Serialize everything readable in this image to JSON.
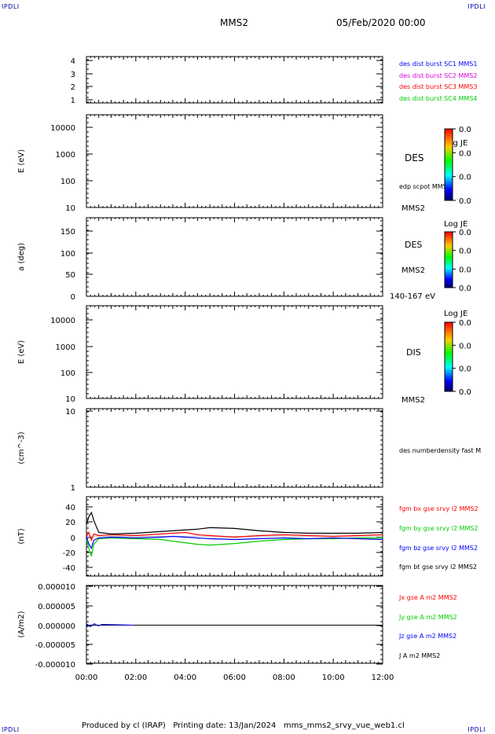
{
  "corners": {
    "tl": "IPDLI",
    "tr": "IPDLI",
    "bl": "IPDLI",
    "br": "IPDLI"
  },
  "header": {
    "spacecraft": "MMS2",
    "date": "05/Feb/2020 00:00"
  },
  "footer": "Produced by cl (IRAP)   Printing date: 13/Jan/2024   mms_mms2_srvy_vue_web1.cl",
  "colors": {
    "blue": "#0000ff",
    "magenta": "#dd00dd",
    "red": "#ff0000",
    "green": "#00cc00",
    "black": "#000000"
  },
  "chart_data": [
    {
      "type": "line",
      "ylim": [
        0.7,
        4.3
      ],
      "yticks": [
        "4",
        "3",
        "2",
        "1"
      ],
      "legend": [
        {
          "text": "des dist burst SC1 MMS1",
          "color": "#0000ff"
        },
        {
          "text": "des dist burst SC2 MMS2",
          "color": "#dd00dd"
        },
        {
          "text": "des dist burst SC3 MMS3",
          "color": "#ff0000"
        },
        {
          "text": "des dist burst SC4 MMS4",
          "color": "#00cc00"
        }
      ]
    },
    {
      "type": "heatmap",
      "ylabel": "E (eV)",
      "yscale": "log",
      "yticks": [
        "10000",
        "1000",
        "100",
        "10"
      ],
      "labels": [
        "DES",
        "edp scpot MMS2",
        "MMS2"
      ],
      "colorbar": {
        "title": "Log JE",
        "ticks": [
          "0.0",
          "0.0",
          "0.0",
          "0.0"
        ]
      }
    },
    {
      "type": "heatmap",
      "ylabel": "a (deg)",
      "ylim": [
        0,
        180
      ],
      "yticks": [
        "150",
        "100",
        "50",
        "0"
      ],
      "labels": [
        "DES",
        "MMS2",
        "140-167 eV"
      ],
      "colorbar": {
        "title": "Log JE",
        "ticks": [
          "0.0",
          "0.0",
          "0.0",
          "0.0"
        ]
      }
    },
    {
      "type": "heatmap",
      "ylabel": "E (eV)",
      "yscale": "log",
      "yticks": [
        "10000",
        "1000",
        "100",
        "10"
      ],
      "labels": [
        "DIS",
        "MMS2"
      ],
      "colorbar": {
        "title": "Log JE",
        "ticks": [
          "0.0",
          "0.0",
          "0.0",
          "0.0"
        ]
      }
    },
    {
      "type": "line",
      "ylabel": "(cm^-3)",
      "yscale": "log",
      "yticks": [
        "10",
        "1"
      ],
      "legend": [
        {
          "text": "des numberdensity fast M",
          "color": "#000000"
        }
      ]
    },
    {
      "type": "line",
      "ylabel": "(nT)",
      "ylim": [
        -50,
        50
      ],
      "yticks": [
        "40",
        "20",
        "0",
        "-20",
        "-40"
      ],
      "legend": [
        {
          "text": "fgm bx gse srvy l2 MMS2",
          "color": "#ff0000"
        },
        {
          "text": "fgm by gse srvy l2 MMS2",
          "color": "#00cc00"
        },
        {
          "text": "fgm bz gse srvy l2 MMS2",
          "color": "#0000ff"
        },
        {
          "text": "fgm bt gse srvy l2 MMS2",
          "color": "#000000"
        }
      ],
      "series": [
        {
          "name": "fgm bx gse srvy l2 MMS2",
          "color": "#ff0000",
          "x": [
            0,
            0.1,
            0.2,
            0.3,
            0.5,
            1,
            2,
            3,
            3.5,
            4,
            4.5,
            5,
            6,
            7,
            8,
            9,
            10,
            11,
            12
          ],
          "y": [
            0,
            5,
            -5,
            3,
            1,
            2,
            1,
            3,
            4,
            5,
            2,
            1,
            -1,
            1,
            2,
            1,
            0,
            1,
            2
          ]
        },
        {
          "name": "fgm by gse srvy l2 MMS2",
          "color": "#00cc00",
          "x": [
            0,
            0.1,
            0.2,
            0.3,
            0.5,
            1,
            2,
            3,
            3.5,
            4,
            4.5,
            5,
            6,
            7,
            8,
            9,
            10,
            11,
            12
          ],
          "y": [
            -5,
            -15,
            -25,
            -10,
            -3,
            -2,
            -3,
            -4,
            -6,
            -8,
            -10,
            -11,
            -9,
            -6,
            -4,
            -3,
            -3,
            -2,
            -2
          ]
        },
        {
          "name": "fgm bz gse srvy l2 MMS2",
          "color": "#0000ff",
          "x": [
            0,
            0.1,
            0.2,
            0.3,
            0.5,
            1,
            2,
            3,
            3.5,
            4,
            4.5,
            5,
            6,
            7,
            8,
            9,
            10,
            11,
            12
          ],
          "y": [
            0,
            -10,
            -15,
            -5,
            -2,
            -1,
            -2,
            -1,
            0,
            -1,
            -2,
            -3,
            -4,
            -3,
            -2,
            -3,
            -2,
            -3,
            -4
          ]
        },
        {
          "name": "fgm bt gse srvy l2 MMS2",
          "color": "#000000",
          "x": [
            0,
            0.1,
            0.2,
            0.3,
            0.5,
            1,
            2,
            3,
            3.5,
            4,
            4.5,
            5,
            6,
            7,
            8,
            9,
            10,
            11,
            12
          ],
          "y": [
            15,
            25,
            30,
            20,
            5,
            3,
            4,
            6,
            7,
            8,
            9,
            11,
            10,
            7,
            5,
            4,
            4,
            4,
            5
          ]
        }
      ]
    },
    {
      "type": "line",
      "ylabel": "(A/m2)",
      "ylim": [
        -1e-05,
        1e-05
      ],
      "yticks": [
        "0.000010",
        "0.000005",
        "0.000000",
        "-0.000005",
        "-0.000010"
      ],
      "xlim": [
        0,
        12
      ],
      "xticks": [
        "00:00",
        "02:00",
        "04:00",
        "06:00",
        "08:00",
        "10:00",
        "12:00"
      ],
      "legend": [
        {
          "text": "Jx gse A m2 MMS2",
          "color": "#ff0000"
        },
        {
          "text": "Jy gse A m2 MMS2",
          "color": "#00cc00"
        },
        {
          "text": "Jz gse A m2 MMS2",
          "color": "#0000ff"
        },
        {
          "text": "J A m2 MMS2",
          "color": "#000000"
        }
      ]
    }
  ]
}
